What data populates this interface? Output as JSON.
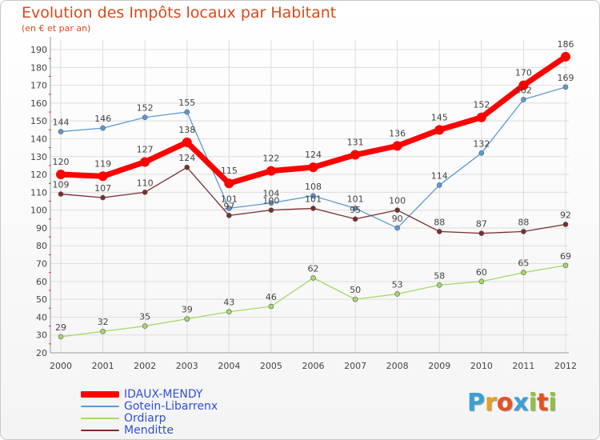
{
  "header": {
    "title": "Evolution des Impôts locaux par Habitant",
    "subtitle": "(en € et par an)"
  },
  "logo": {
    "text": "Proxiti",
    "letter_colors": [
      "#3aa0d8",
      "#e8a020",
      "#e85020",
      "#3aa0d8",
      "#90c040",
      "#e85020",
      "#90c040"
    ]
  },
  "colors": {
    "axis": "#999999",
    "grid": "#dddddd",
    "tick_red": "#ff0000",
    "label": "#444444"
  },
  "chart_data": {
    "type": "line",
    "title": "Evolution des Impôts locaux par Habitant",
    "subtitle": "(en € et par an)",
    "x": [
      "2000",
      "2001",
      "2002",
      "2003",
      "2004",
      "2005",
      "2006",
      "2007",
      "2008",
      "2009",
      "2010",
      "2011",
      "2012"
    ],
    "ylim": [
      20,
      190
    ],
    "yticks": [
      20,
      30,
      40,
      50,
      60,
      70,
      80,
      90,
      100,
      110,
      120,
      130,
      140,
      150,
      160,
      170,
      180,
      190
    ],
    "grid": true,
    "legend_position": "bottom-left",
    "series": [
      {
        "name": "IDAUX-MENDY",
        "color": "#ff0000",
        "width": 7,
        "marker": 6,
        "values": [
          120,
          119,
          127,
          138,
          115,
          122,
          124,
          131,
          136,
          145,
          152,
          170,
          186
        ]
      },
      {
        "name": "Gotein-Libarrenx",
        "color": "#5b9bd5",
        "width": 1.3,
        "marker": 3,
        "values": [
          144,
          146,
          152,
          155,
          101,
          104,
          108,
          101,
          90,
          114,
          132,
          162,
          169
        ]
      },
      {
        "name": "Ordiarp",
        "color": "#a6d96a",
        "width": 1.3,
        "marker": 3,
        "values": [
          29,
          32,
          35,
          39,
          43,
          46,
          62,
          50,
          53,
          58,
          60,
          65,
          69
        ]
      },
      {
        "name": "Menditte",
        "color": "#7b2d2d",
        "width": 1.3,
        "marker": 3,
        "values": [
          109,
          107,
          110,
          124,
          97,
          100,
          101,
          95,
          100,
          88,
          87,
          88,
          92
        ]
      }
    ]
  }
}
